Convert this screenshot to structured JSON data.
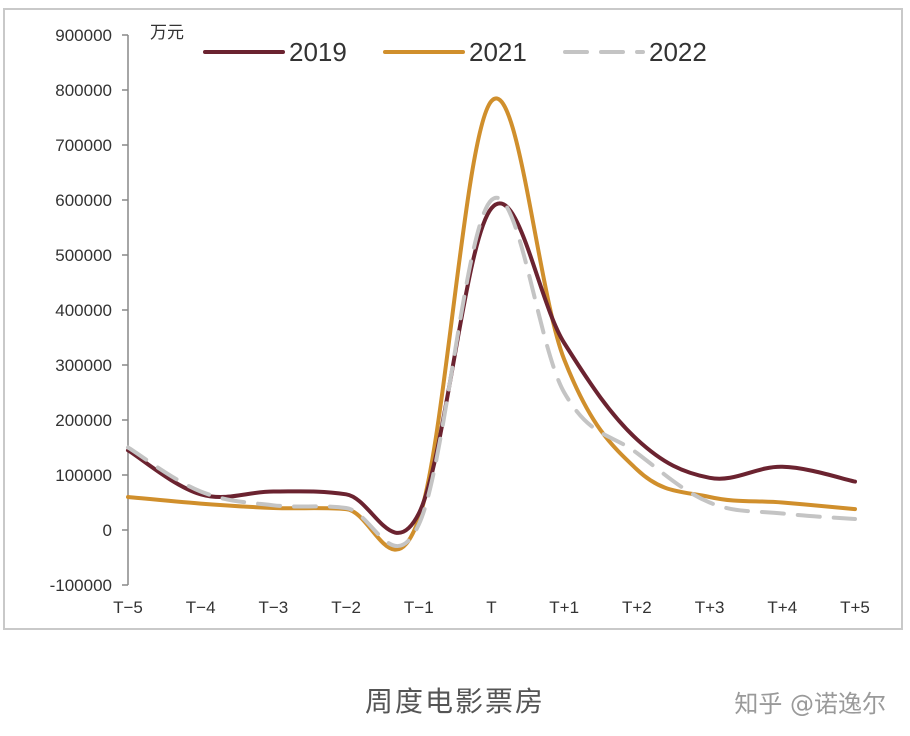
{
  "chart_data": {
    "type": "line",
    "unit": "万元",
    "categories": [
      "T−5",
      "T−4",
      "T−3",
      "T−2",
      "T−1",
      "T",
      "T+1",
      "T+2",
      "T+3",
      "T+4",
      "T+5"
    ],
    "y_ticks": [
      900000,
      800000,
      700000,
      600000,
      500000,
      400000,
      300000,
      200000,
      100000,
      0,
      -100000
    ],
    "ylim": [
      -100000,
      900000
    ],
    "grid": false,
    "legend_position": "top",
    "series": [
      {
        "name": "2019",
        "color": "#6b2330",
        "dash": "none",
        "values": [
          145000,
          65000,
          70000,
          65000,
          30000,
          585000,
          340000,
          165000,
          95000,
          115000,
          88000
        ]
      },
      {
        "name": "2021",
        "color": "#d08f2c",
        "dash": "none",
        "values": [
          60000,
          48000,
          40000,
          38000,
          20000,
          780000,
          310000,
          110000,
          60000,
          50000,
          38000
        ]
      },
      {
        "name": "2022",
        "color": "#c4c4c4",
        "dash": "dashed",
        "values": [
          150000,
          70000,
          45000,
          40000,
          10000,
          600000,
          250000,
          140000,
          50000,
          30000,
          20000
        ]
      }
    ]
  },
  "caption": "周度电影票房",
  "watermark": "知乎 @诺逸尔"
}
